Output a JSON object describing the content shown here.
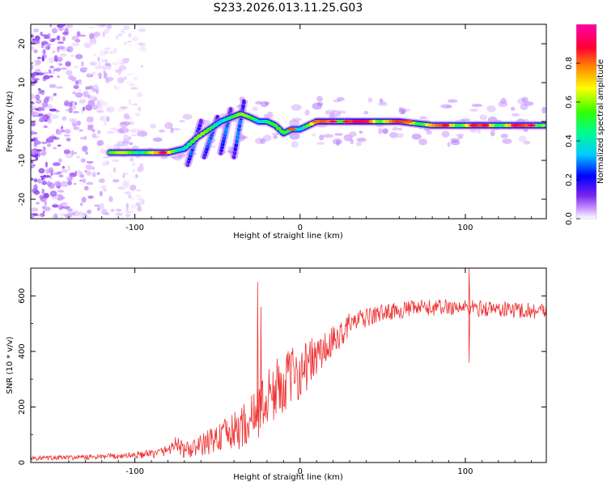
{
  "figure": {
    "title": "S233.2026.013.11.25.G03"
  },
  "chart_data": [
    {
      "type": "heatmap",
      "title": "S233.2026.013.11.25.G03",
      "xlabel": "Height of straight line (km)",
      "ylabel": "Frequency (Hz)",
      "xlim": [
        -163,
        149
      ],
      "ylim": [
        -25,
        25
      ],
      "x_ticks": [
        -100,
        0,
        100
      ],
      "x_tick_labels": [
        "-100",
        "0",
        "100"
      ],
      "y_ticks": [
        -20,
        -10,
        0,
        10,
        20
      ],
      "y_tick_labels": [
        "-20",
        "-10",
        "0",
        "10",
        "20"
      ],
      "colorbar": {
        "label": "Normalized spectral amplitude",
        "range": [
          0,
          1
        ],
        "ticks": [
          0.0,
          0.2,
          0.4,
          0.6,
          0.8
        ],
        "tick_labels": [
          "0.0",
          "0.2",
          "0.4",
          "0.6",
          "0.8"
        ],
        "colors": [
          "#ffffff",
          "#cc99ff",
          "#7722ee",
          "#0000ff",
          "#00ccff",
          "#00ff66",
          "#ffff00",
          "#ff8800",
          "#ff0033",
          "#ff00aa"
        ]
      },
      "ridge": {
        "x": [
          -115,
          -95,
          -80,
          -70,
          -62,
          -55,
          -48,
          -42,
          -36,
          -30,
          -25,
          -20,
          -15,
          -10,
          -5,
          0,
          5,
          10,
          20,
          40,
          60,
          80,
          100,
          120,
          148
        ],
        "y": [
          -8,
          -8,
          -8,
          -7,
          -4,
          -2,
          0,
          1,
          2,
          1,
          0,
          0,
          -1,
          -3,
          -2,
          -2,
          -1,
          0,
          0,
          0,
          0,
          -1,
          -1,
          -1,
          -1
        ],
        "amplitude": [
          0.6,
          0.7,
          0.8,
          0.55,
          0.6,
          0.6,
          0.6,
          0.55,
          0.6,
          0.65,
          0.6,
          0.6,
          0.55,
          0.55,
          0.55,
          0.6,
          0.7,
          0.8,
          0.9,
          0.95,
          0.85,
          0.8,
          0.85,
          0.8,
          0.9
        ]
      },
      "striations": [
        {
          "x0": -68,
          "y0": -11,
          "x1": -60,
          "y1": 0
        },
        {
          "x0": -58,
          "y0": -9,
          "x1": -50,
          "y1": 1
        },
        {
          "x0": -48,
          "y0": -8,
          "x1": -42,
          "y1": 3
        },
        {
          "x0": -40,
          "y0": -9,
          "x1": -34,
          "y1": 5
        }
      ],
      "noise_region_x": [
        -163,
        -105
      ]
    },
    {
      "type": "line",
      "xlabel": "Height of straight line (km)",
      "ylabel": "SNR (10 * v/v)",
      "xlim": [
        -163,
        149
      ],
      "ylim": [
        0,
        700
      ],
      "x_ticks": [
        -100,
        0,
        100
      ],
      "x_tick_labels": [
        "-100",
        "0",
        "100"
      ],
      "y_ticks": [
        0,
        200,
        400,
        600
      ],
      "y_tick_labels": [
        "0",
        "200",
        "400",
        "600"
      ],
      "color": "#ee3333",
      "series": [
        {
          "name": "SNR",
          "trend_x": [
            -163,
            -120,
            -90,
            -80,
            -75,
            -70,
            -60,
            -50,
            -40,
            -30,
            -20,
            -10,
            0,
            10,
            20,
            30,
            50,
            70,
            90,
            110,
            130,
            149
          ],
          "trend_y": [
            15,
            20,
            30,
            45,
            70,
            40,
            60,
            90,
            110,
            150,
            230,
            290,
            330,
            380,
            430,
            500,
            540,
            555,
            560,
            555,
            550,
            545
          ],
          "noise_amplitude": [
            8,
            10,
            15,
            20,
            30,
            30,
            40,
            55,
            70,
            90,
            110,
            110,
            100,
            80,
            60,
            40,
            30,
            30,
            30,
            30,
            30,
            30
          ],
          "spikes": [
            {
              "x": -26,
              "y": 650
            },
            {
              "x": -24,
              "y": 560
            },
            {
              "x": 102,
              "y": 700
            },
            {
              "x": 102,
              "y": 360
            }
          ]
        }
      ]
    }
  ]
}
